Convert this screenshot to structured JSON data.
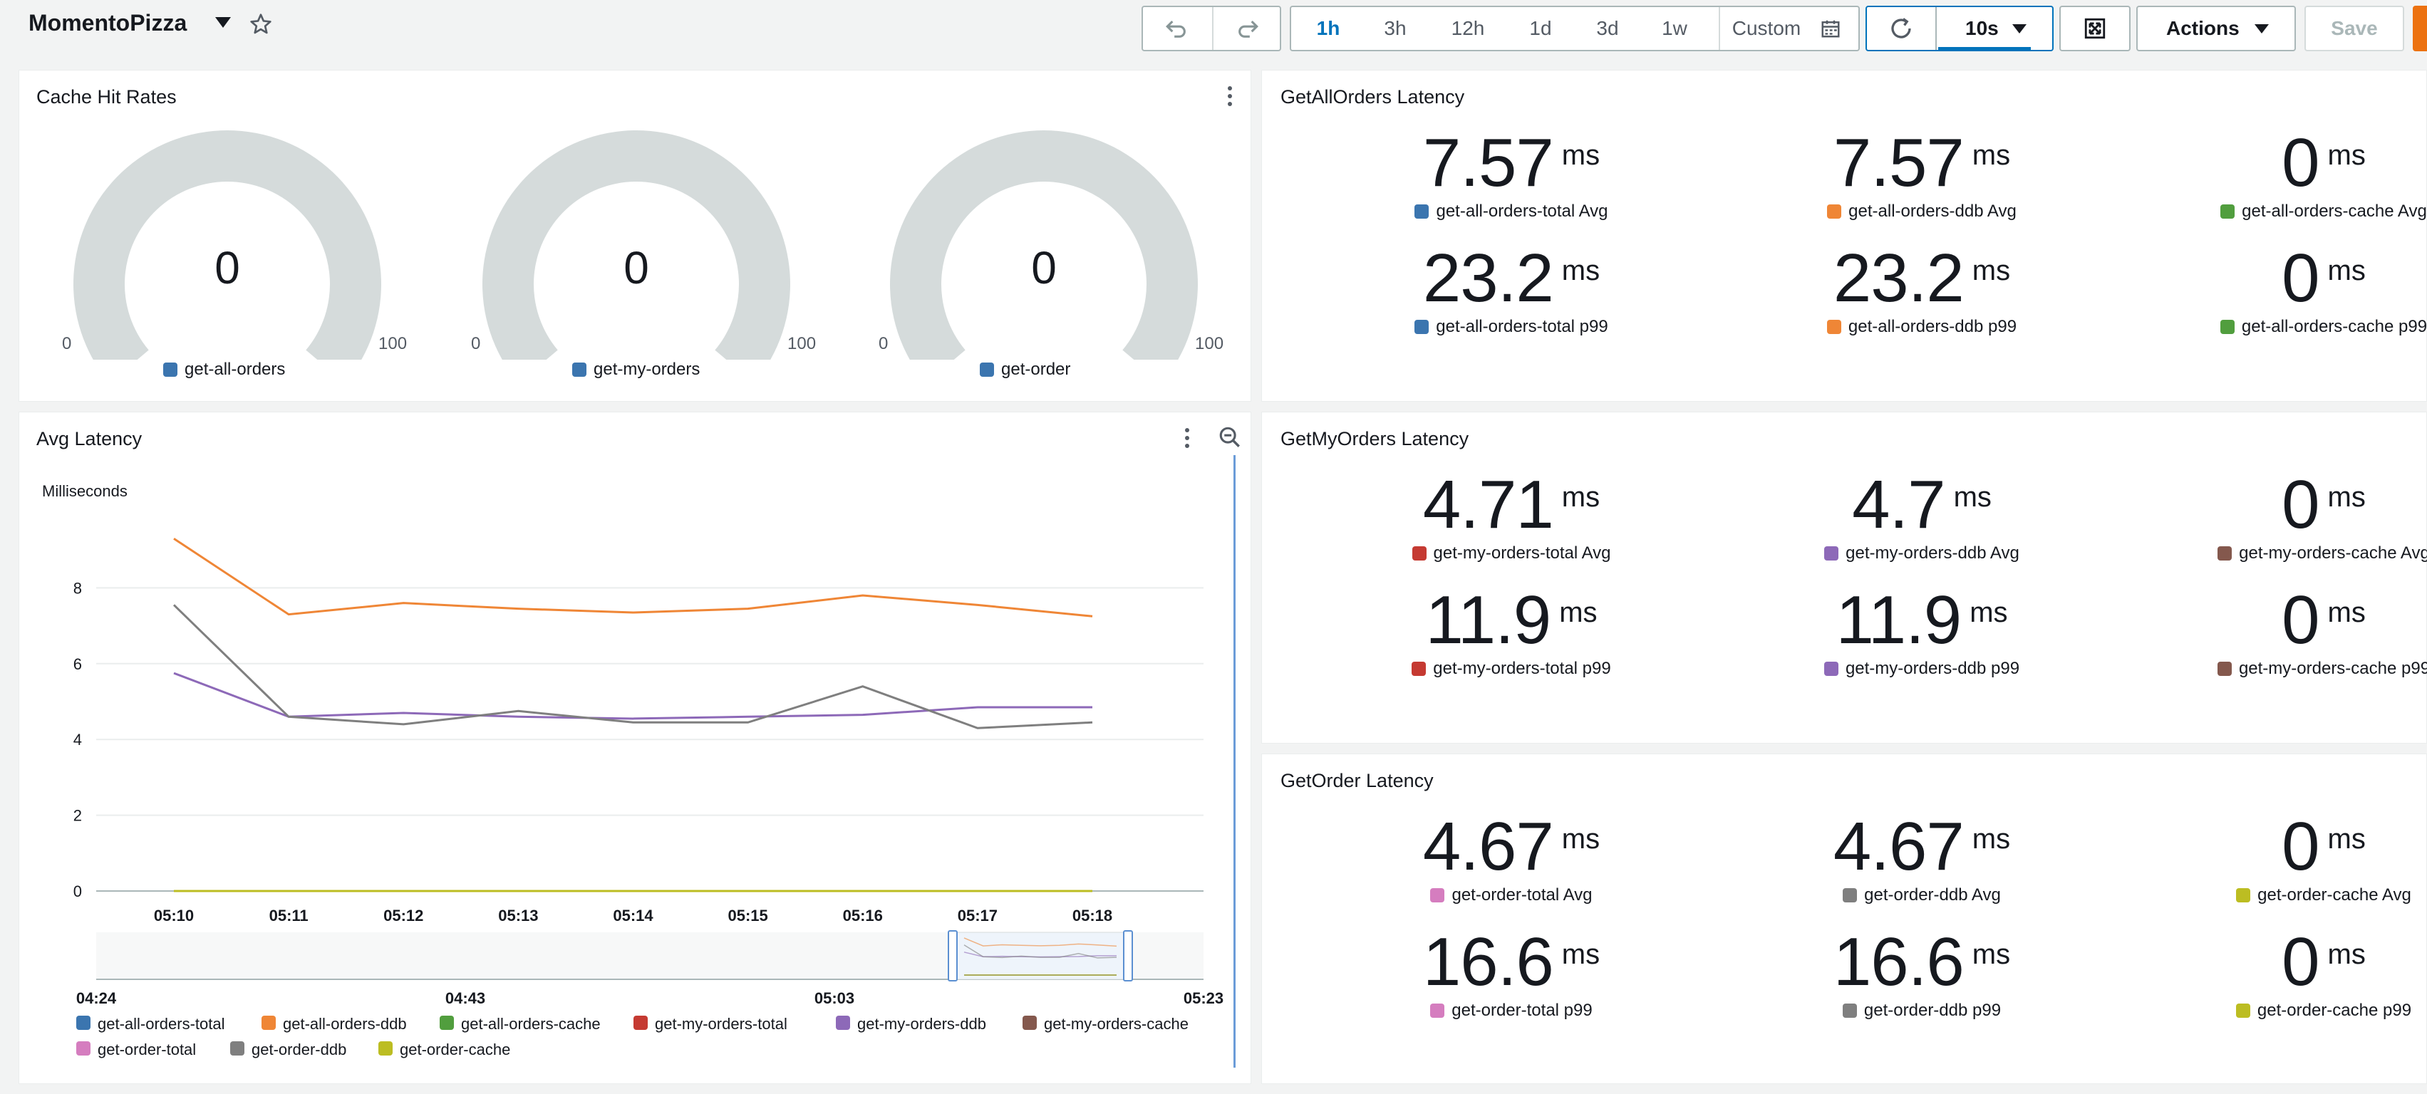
{
  "header": {
    "title": "MomentoPizza",
    "time_ranges": [
      "1h",
      "3h",
      "12h",
      "1d",
      "3d",
      "1w"
    ],
    "active_range": "1h",
    "custom_label": "Custom",
    "refresh_interval": "10s",
    "actions_label": "Actions",
    "save_label": "Save"
  },
  "cache_hit_rates": {
    "title": "Cache Hit Rates",
    "gauges": [
      {
        "label": "get-all-orders",
        "value": "0",
        "min": "0",
        "max": "100",
        "color": "#3b75af"
      },
      {
        "label": "get-my-orders",
        "value": "0",
        "min": "0",
        "max": "100",
        "color": "#3b75af"
      },
      {
        "label": "get-order",
        "value": "0",
        "min": "0",
        "max": "100",
        "color": "#3b75af"
      }
    ]
  },
  "get_all_orders": {
    "title": "GetAllOrders Latency",
    "metrics": [
      {
        "value": "7.57",
        "unit": "ms",
        "label": "get-all-orders-total Avg",
        "color": "#3b75af"
      },
      {
        "value": "7.57",
        "unit": "ms",
        "label": "get-all-orders-ddb Avg",
        "color": "#ef8636"
      },
      {
        "value": "0",
        "unit": "ms",
        "label": "get-all-orders-cache Avg",
        "color": "#519e3e"
      },
      {
        "value": "23.2",
        "unit": "ms",
        "label": "get-all-orders-total p99",
        "color": "#3b75af"
      },
      {
        "value": "23.2",
        "unit": "ms",
        "label": "get-all-orders-ddb p99",
        "color": "#ef8636"
      },
      {
        "value": "0",
        "unit": "ms",
        "label": "get-all-orders-cache p99",
        "color": "#519e3e"
      }
    ]
  },
  "get_my_orders": {
    "title": "GetMyOrders Latency",
    "metrics": [
      {
        "value": "4.71",
        "unit": "ms",
        "label": "get-my-orders-total Avg",
        "color": "#c53a32"
      },
      {
        "value": "4.7",
        "unit": "ms",
        "label": "get-my-orders-ddb Avg",
        "color": "#8d69b8"
      },
      {
        "value": "0",
        "unit": "ms",
        "label": "get-my-orders-cache Avg",
        "color": "#84584d"
      },
      {
        "value": "11.9",
        "unit": "ms",
        "label": "get-my-orders-total p99",
        "color": "#c53a32"
      },
      {
        "value": "11.9",
        "unit": "ms",
        "label": "get-my-orders-ddb p99",
        "color": "#8d69b8"
      },
      {
        "value": "0",
        "unit": "ms",
        "label": "get-my-orders-cache p99",
        "color": "#84584d"
      }
    ]
  },
  "get_order": {
    "title": "GetOrder Latency",
    "metrics": [
      {
        "value": "4.67",
        "unit": "ms",
        "label": "get-order-total Avg",
        "color": "#d57dbf"
      },
      {
        "value": "4.67",
        "unit": "ms",
        "label": "get-order-ddb Avg",
        "color": "#7f7f7f"
      },
      {
        "value": "0",
        "unit": "ms",
        "label": "get-order-cache Avg",
        "color": "#bcbd22"
      },
      {
        "value": "16.6",
        "unit": "ms",
        "label": "get-order-total p99",
        "color": "#d57dbf"
      },
      {
        "value": "16.6",
        "unit": "ms",
        "label": "get-order-ddb p99",
        "color": "#7f7f7f"
      },
      {
        "value": "0",
        "unit": "ms",
        "label": "get-order-cache p99",
        "color": "#bcbd22"
      }
    ]
  },
  "avg_latency": {
    "title": "Avg Latency",
    "chart_data": {
      "type": "line",
      "ylabel": "Milliseconds",
      "ylim": [
        0,
        10
      ],
      "yticks": [
        "0",
        "2",
        "4",
        "6",
        "8"
      ],
      "x": [
        "05:10",
        "05:11",
        "05:12",
        "05:13",
        "05:14",
        "05:15",
        "05:16",
        "05:17",
        "05:18"
      ],
      "grid": true,
      "series": [
        {
          "name": "get-all-orders-total",
          "color": "#3b75af",
          "values": null
        },
        {
          "name": "get-all-orders-ddb",
          "color": "#ef8636",
          "values": [
            9.3,
            7.3,
            7.6,
            7.45,
            7.35,
            7.45,
            7.8,
            7.55,
            7.25
          ]
        },
        {
          "name": "get-all-orders-cache",
          "color": "#519e3e",
          "values": [
            0,
            0,
            0,
            0,
            0,
            0,
            0,
            0,
            0
          ]
        },
        {
          "name": "get-my-orders-total",
          "color": "#c53a32",
          "values": null
        },
        {
          "name": "get-my-orders-ddb",
          "color": "#8d69b8",
          "values": [
            5.75,
            4.6,
            4.7,
            4.6,
            4.55,
            4.6,
            4.65,
            4.85,
            4.85
          ]
        },
        {
          "name": "get-my-orders-cache",
          "color": "#84584d",
          "values": [
            0,
            0,
            0,
            0,
            0,
            0,
            0,
            0,
            0
          ]
        },
        {
          "name": "get-order-total",
          "color": "#d57dbf",
          "values": null
        },
        {
          "name": "get-order-ddb",
          "color": "#7f7f7f",
          "values": [
            7.55,
            4.6,
            4.4,
            4.75,
            4.45,
            4.45,
            5.4,
            4.3,
            4.45
          ]
        },
        {
          "name": "get-order-cache",
          "color": "#bcbd22",
          "values": [
            0,
            0,
            0,
            0,
            0,
            0,
            0,
            0,
            0
          ]
        }
      ],
      "overview_ticks": [
        "04:24",
        "04:43",
        "05:03",
        "05:23"
      ],
      "legend_position": "bottom"
    }
  }
}
